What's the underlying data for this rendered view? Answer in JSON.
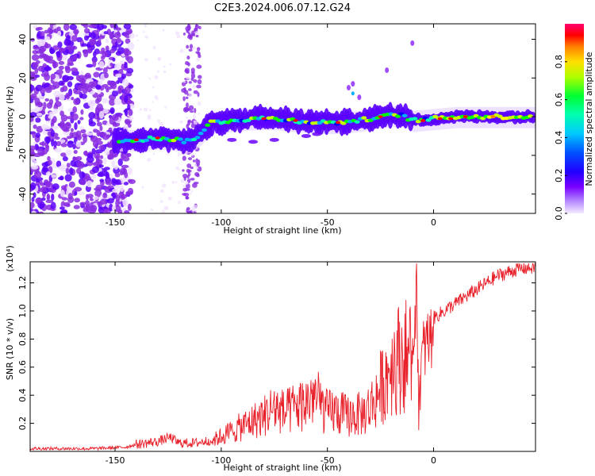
{
  "title": "C2E3.2024.006.07.12.G24",
  "chart_data": [
    {
      "type": "heatmap",
      "xlabel": "Height of straight line (km)",
      "ylabel": "Frequency (Hz)",
      "xlim": [
        -190,
        48
      ],
      "ylim": [
        -50,
        48
      ],
      "x_ticks": [
        -150,
        -100,
        -50,
        0
      ],
      "y_ticks": [
        -40,
        -20,
        0,
        20,
        40
      ],
      "colorbar": {
        "label": "Normalized spectral amplitude",
        "range": [
          0,
          1
        ],
        "ticks": [
          0.0,
          0.2,
          0.4,
          0.6,
          0.8
        ],
        "colormap": [
          "#f0e0ff",
          "#8a2be2",
          "#5a00ff",
          "#0000ff",
          "#00b0ff",
          "#00ffb0",
          "#00ff00",
          "#c8ff00",
          "#ffff00",
          "#ff8000",
          "#ff0000",
          "#ff0080"
        ]
      },
      "center_line": [
        {
          "x": -150,
          "y": -12
        },
        {
          "x": -140,
          "y": -12
        },
        {
          "x": -130,
          "y": -11
        },
        {
          "x": -120,
          "y": -12
        },
        {
          "x": -115,
          "y": -13
        },
        {
          "x": -110,
          "y": -9
        },
        {
          "x": -105,
          "y": -3
        },
        {
          "x": -95,
          "y": -2
        },
        {
          "x": -85,
          "y": -1
        },
        {
          "x": -75,
          "y": -1
        },
        {
          "x": -65,
          "y": -2
        },
        {
          "x": -55,
          "y": -3
        },
        {
          "x": -45,
          "y": -3
        },
        {
          "x": -35,
          "y": -2
        },
        {
          "x": -25,
          "y": 0
        },
        {
          "x": -15,
          "y": 1
        },
        {
          "x": -10,
          "y": -2
        },
        {
          "x": 0,
          "y": -1
        },
        {
          "x": 10,
          "y": 0
        },
        {
          "x": 20,
          "y": 0
        },
        {
          "x": 30,
          "y": 0
        },
        {
          "x": 48,
          "y": 0
        }
      ]
    },
    {
      "type": "line",
      "xlabel": "Height of straight line (km)",
      "ylabel": "SNR (10 * v/v)",
      "y_multiplier": "(x10⁴)",
      "xlim": [
        -190,
        48
      ],
      "ylim": [
        0,
        1.35
      ],
      "x_ticks": [
        -150,
        -100,
        -50,
        0
      ],
      "y_ticks": [
        0.2,
        0.4,
        0.6,
        0.8,
        1.0,
        1.2
      ],
      "color": "#e8202a",
      "series": [
        {
          "x": [
            -190,
            -160,
            -145,
            -140,
            -130,
            -124,
            -120,
            -112,
            -105,
            -100,
            -90,
            -80,
            -75,
            -70,
            -65,
            -60,
            -57,
            -52,
            -50,
            -48,
            -40,
            -33,
            -30,
            -28,
            -22,
            -20,
            -15,
            -10,
            -8,
            -7,
            -5,
            -3,
            -1,
            0,
            5,
            10,
            20,
            30,
            40,
            48
          ],
          "y": [
            0.02,
            0.02,
            0.03,
            0.05,
            0.07,
            0.1,
            0.06,
            0.06,
            0.08,
            0.12,
            0.2,
            0.28,
            0.35,
            0.3,
            0.35,
            0.38,
            0.45,
            0.35,
            0.3,
            0.32,
            0.28,
            0.3,
            0.35,
            0.4,
            0.6,
            0.7,
            0.75,
            0.78,
            1.1,
            0.4,
            0.7,
            0.78,
            0.82,
            0.95,
            1.0,
            1.05,
            1.15,
            1.25,
            1.3,
            1.31
          ]
        }
      ]
    }
  ]
}
